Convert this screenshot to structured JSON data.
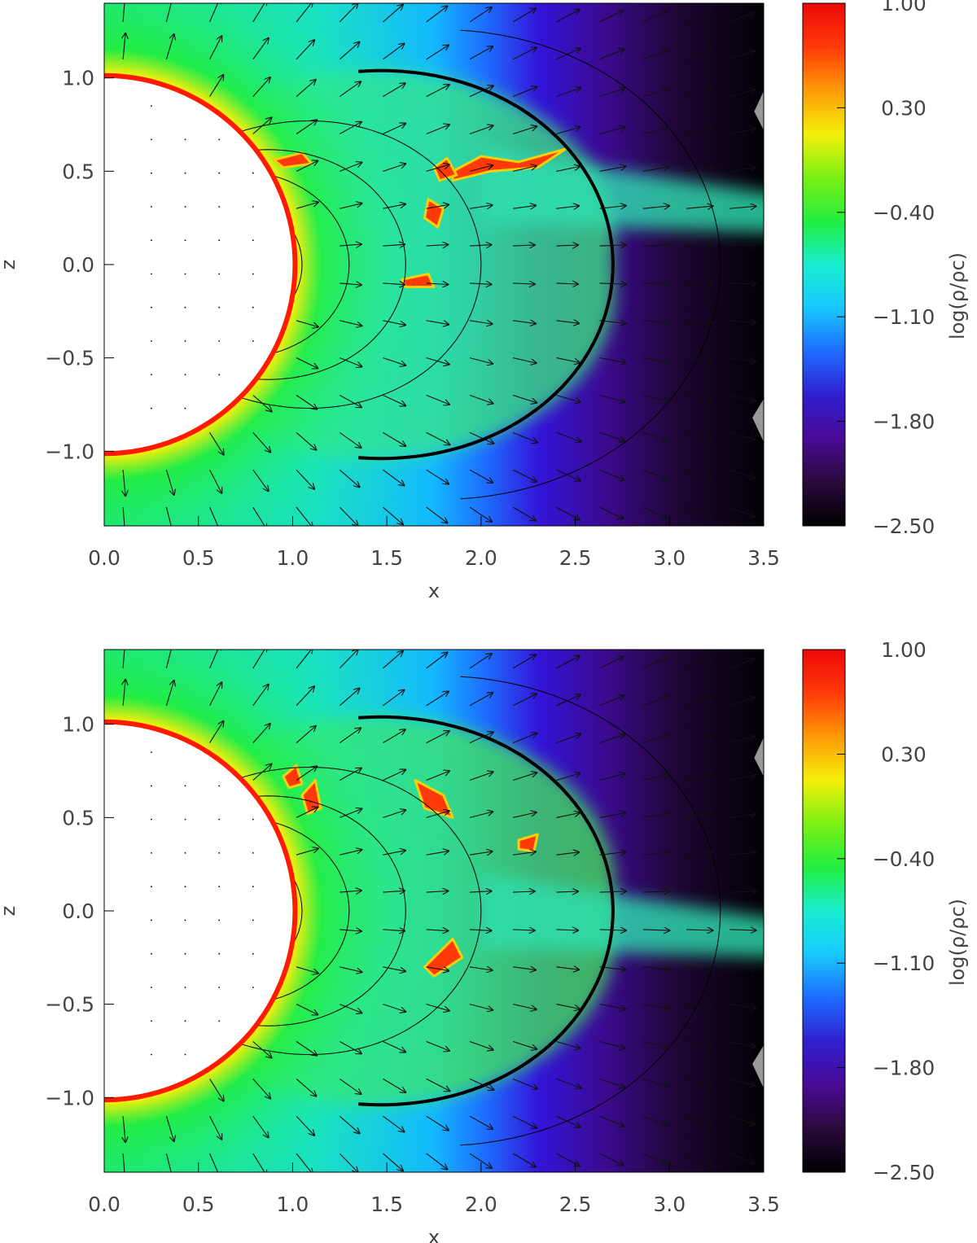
{
  "chart_data": [
    {
      "type": "heatmap",
      "panel": "top",
      "xlabel": "x",
      "ylabel": "z",
      "xlim": [
        0.0,
        3.5
      ],
      "ylim": [
        -1.4,
        1.4
      ],
      "xticks": [
        "0.0",
        "0.5",
        "1.0",
        "1.5",
        "2.0",
        "2.5",
        "3.0",
        "3.5"
      ],
      "yticks": [
        "1.0",
        "0.5",
        "0.0",
        "−0.5",
        "−1.0"
      ],
      "xtick_values": [
        0.0,
        0.5,
        1.0,
        1.5,
        2.0,
        2.5,
        3.0,
        3.5
      ],
      "ytick_values": [
        1.0,
        0.5,
        0.0,
        -0.5,
        -1.0
      ],
      "colorbar": {
        "label": "log(ρ/ρc)",
        "range": [
          -2.5,
          1.0
        ],
        "ticks": [
          "1.00",
          "0.30",
          "−0.40",
          "−1.10",
          "−1.80",
          "−2.50"
        ],
        "tick_values": [
          1.0,
          0.3,
          -0.4,
          -1.1,
          -1.8,
          -2.5
        ]
      },
      "star_radius": 1.0,
      "closure_loop_apex_x": 2.7,
      "outer_field_line_apex_x": 3.27,
      "overlays": [
        "velocity arrows",
        "magnetic field lines"
      ]
    },
    {
      "type": "heatmap",
      "panel": "bottom",
      "xlabel": "x",
      "ylabel": "z",
      "xlim": [
        0.0,
        3.5
      ],
      "ylim": [
        -1.4,
        1.4
      ],
      "xticks": [
        "0.0",
        "0.5",
        "1.0",
        "1.5",
        "2.0",
        "2.5",
        "3.0",
        "3.5"
      ],
      "yticks": [
        "1.0",
        "0.5",
        "0.0",
        "−0.5",
        "−1.0"
      ],
      "xtick_values": [
        0.0,
        0.5,
        1.0,
        1.5,
        2.0,
        2.5,
        3.0,
        3.5
      ],
      "ytick_values": [
        1.0,
        0.5,
        0.0,
        -0.5,
        -1.0
      ],
      "colorbar": {
        "label": "log(ρ/ρc)",
        "range": [
          -2.5,
          1.0
        ],
        "ticks": [
          "1.00",
          "0.30",
          "−0.40",
          "−1.10",
          "−1.80",
          "−2.50"
        ],
        "tick_values": [
          1.0,
          0.3,
          -0.4,
          -1.1,
          -1.8,
          -2.5
        ]
      },
      "star_radius": 1.0,
      "closure_loop_apex_x": 2.7,
      "outer_field_line_apex_x": 3.27,
      "overlays": [
        "velocity arrows",
        "magnetic field lines"
      ]
    }
  ],
  "colors": {
    "colormap": [
      "#000000",
      "#2a0a3a",
      "#4a0a96",
      "#2f1fd0",
      "#1e6bff",
      "#19c8ff",
      "#18eed0",
      "#22ee40",
      "#7cf015",
      "#f4f00a",
      "#ff9a08",
      "#ff3a08",
      "#ee0808"
    ],
    "star": "#ffffff",
    "limb": "#ff1a00",
    "field_line": "#000000",
    "arrow": "#111111",
    "gray_patch": "#999999"
  }
}
